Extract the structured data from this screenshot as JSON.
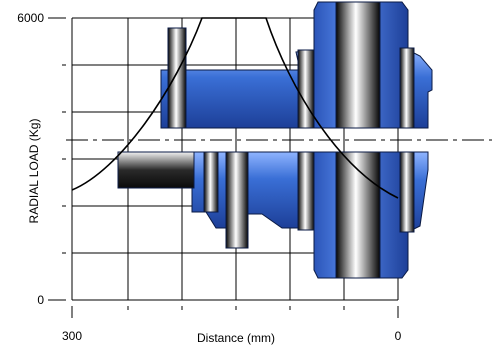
{
  "figure": {
    "y_axis_label": "RADIAL LOAD (Kg)",
    "y_ticks": [
      "6000",
      "0"
    ],
    "x_axis_label": "Distance (mm)",
    "x_ticks": [
      "300",
      "0"
    ]
  },
  "colors": {
    "shaft_blue": "#3a6fd0",
    "shaft_outline": "#0a1a44",
    "grid": "#000000"
  }
}
